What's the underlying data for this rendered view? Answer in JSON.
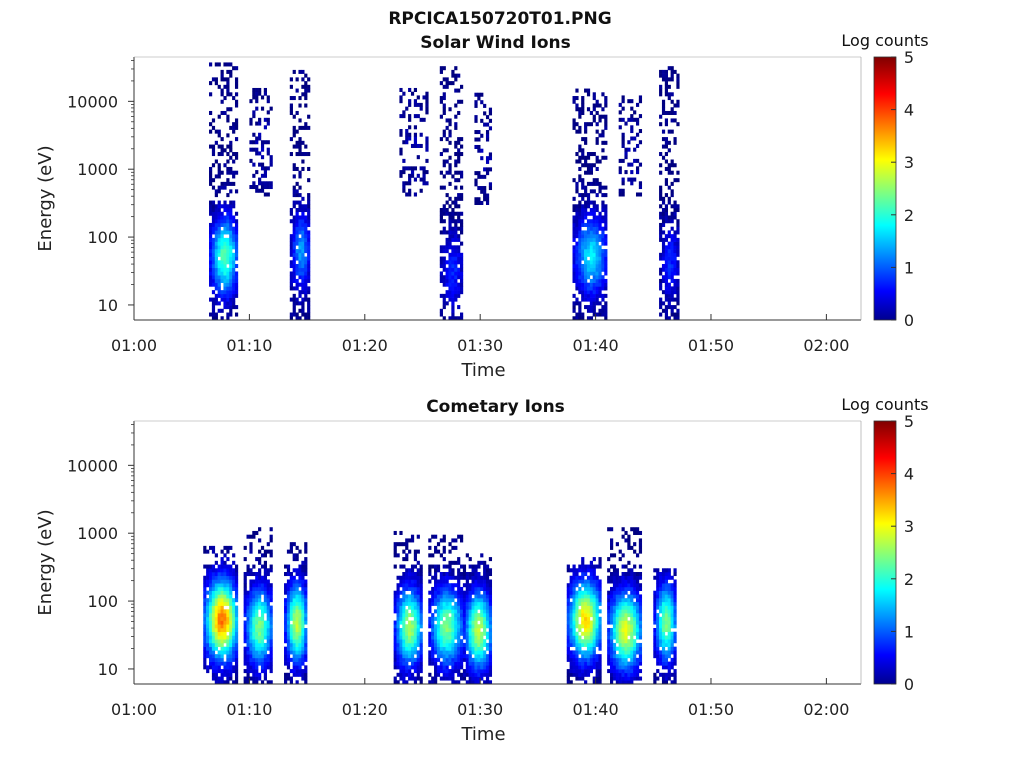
{
  "figure_title": "RPCICA150720T01.PNG",
  "chart_data": [
    {
      "type": "heatmap",
      "title": "Solar Wind Ions",
      "xlabel": "Time",
      "ylabel": "Energy (eV)",
      "x_ticks": [
        "01:00",
        "01:10",
        "01:20",
        "01:30",
        "01:40",
        "01:50",
        "02:00"
      ],
      "xlim": [
        "01:00",
        "02:03"
      ],
      "y_scale": "log",
      "y_ticks": [
        10,
        100,
        1000,
        10000
      ],
      "ylim": [
        6,
        45000
      ],
      "colorbar": {
        "label": "Log counts",
        "range": [
          0,
          5
        ],
        "ticks": [
          0,
          1,
          2,
          3,
          4,
          5
        ],
        "colormap": "jet"
      },
      "bursts": [
        {
          "t_start": "01:06.5",
          "t_end": "01:09.0",
          "e_min": 6,
          "e_max": 35000,
          "peak_energy": 50,
          "peak_log_counts": 2.3
        },
        {
          "t_start": "01:10.0",
          "t_end": "01:12.0",
          "e_min": 400,
          "e_max": 15000,
          "peak_energy": 2000,
          "peak_log_counts": 0.2
        },
        {
          "t_start": "01:13.5",
          "t_end": "01:15.2",
          "e_min": 6,
          "e_max": 28000,
          "peak_energy": 60,
          "peak_log_counts": 1.4
        },
        {
          "t_start": "01:23.0",
          "t_end": "01:25.5",
          "e_min": 400,
          "e_max": 15000,
          "peak_energy": 2000,
          "peak_log_counts": 0.2
        },
        {
          "t_start": "01:26.5",
          "t_end": "01:28.5",
          "e_min": 6,
          "e_max": 30000,
          "peak_energy": 30,
          "peak_log_counts": 0.8
        },
        {
          "t_start": "01:29.5",
          "t_end": "01:31.0",
          "e_min": 300,
          "e_max": 12000,
          "peak_energy": 2000,
          "peak_log_counts": 0.2
        },
        {
          "t_start": "01:38.0",
          "t_end": "01:41.0",
          "e_min": 6,
          "e_max": 15000,
          "peak_energy": 50,
          "peak_log_counts": 1.8
        },
        {
          "t_start": "01:42.0",
          "t_end": "01:44.0",
          "e_min": 400,
          "e_max": 12000,
          "peak_energy": 2000,
          "peak_log_counts": 0.2
        },
        {
          "t_start": "01:45.5",
          "t_end": "01:47.2",
          "e_min": 6,
          "e_max": 32000,
          "peak_energy": 40,
          "peak_log_counts": 0.8
        }
      ]
    },
    {
      "type": "heatmap",
      "title": "Cometary Ions",
      "xlabel": "Time",
      "ylabel": "Energy (eV)",
      "x_ticks": [
        "01:00",
        "01:10",
        "01:20",
        "01:30",
        "01:40",
        "01:50",
        "02:00"
      ],
      "xlim": [
        "01:00",
        "02:03"
      ],
      "y_scale": "log",
      "y_ticks": [
        10,
        100,
        1000,
        10000
      ],
      "ylim": [
        6,
        45000
      ],
      "colorbar": {
        "label": "Log counts",
        "range": [
          0,
          5
        ],
        "ticks": [
          0,
          1,
          2,
          3,
          4,
          5
        ],
        "colormap": "jet"
      },
      "bursts": [
        {
          "t_start": "01:06.0",
          "t_end": "01:09.0",
          "e_min": 6,
          "e_max": 600,
          "peak_energy": 50,
          "peak_log_counts": 3.8
        },
        {
          "t_start": "01:09.5",
          "t_end": "01:12.0",
          "e_min": 6,
          "e_max": 1200,
          "peak_energy": 40,
          "peak_log_counts": 2.5
        },
        {
          "t_start": "01:13.0",
          "t_end": "01:15.0",
          "e_min": 6,
          "e_max": 800,
          "peak_energy": 45,
          "peak_log_counts": 2.8
        },
        {
          "t_start": "01:22.5",
          "t_end": "01:25.0",
          "e_min": 6,
          "e_max": 1000,
          "peak_energy": 40,
          "peak_log_counts": 2.7
        },
        {
          "t_start": "01:25.5",
          "t_end": "01:28.5",
          "e_min": 6,
          "e_max": 900,
          "peak_energy": 40,
          "peak_log_counts": 2.5
        },
        {
          "t_start": "01:28.5",
          "t_end": "01:31.0",
          "e_min": 6,
          "e_max": 500,
          "peak_energy": 35,
          "peak_log_counts": 2.8
        },
        {
          "t_start": "01:37.5",
          "t_end": "01:40.5",
          "e_min": 6,
          "e_max": 400,
          "peak_energy": 50,
          "peak_log_counts": 3.3
        },
        {
          "t_start": "01:41.0",
          "t_end": "01:44.0",
          "e_min": 6,
          "e_max": 1200,
          "peak_energy": 35,
          "peak_log_counts": 3.0
        },
        {
          "t_start": "01:45.0",
          "t_end": "01:47.0",
          "e_min": 6,
          "e_max": 300,
          "peak_energy": 45,
          "peak_log_counts": 2.5
        }
      ]
    }
  ]
}
